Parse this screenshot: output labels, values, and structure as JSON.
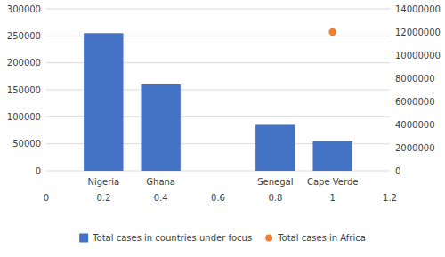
{
  "chart_data": {
    "type": "bar",
    "categories": [
      "Nigeria",
      "Ghana",
      "Senegal",
      "Cape Verde"
    ],
    "x": [
      0.2,
      0.4,
      0.8,
      1
    ],
    "series": [
      {
        "name": "Total cases in countries under focus",
        "color": "#4472C4",
        "values": [
          255000,
          160000,
          85000,
          55000
        ]
      },
      {
        "name": "Total cases in Africa",
        "type": "scatter",
        "axis": "y2",
        "color": "#ED7D31",
        "values": [
          null,
          null,
          null,
          12000000
        ]
      }
    ],
    "xlim": [
      0,
      1.2
    ],
    "xticks": [
      0,
      0.2,
      0.4,
      0.6,
      0.8,
      1,
      1.2
    ],
    "ylim": [
      0,
      300000
    ],
    "yticks": [
      0,
      50000,
      100000,
      150000,
      200000,
      250000,
      300000
    ],
    "y2lim": [
      0,
      14000000
    ],
    "y2ticks": [
      0,
      2000000,
      4000000,
      6000000,
      8000000,
      10000000,
      12000000,
      14000000
    ],
    "grid": true,
    "legend": "bottom"
  }
}
